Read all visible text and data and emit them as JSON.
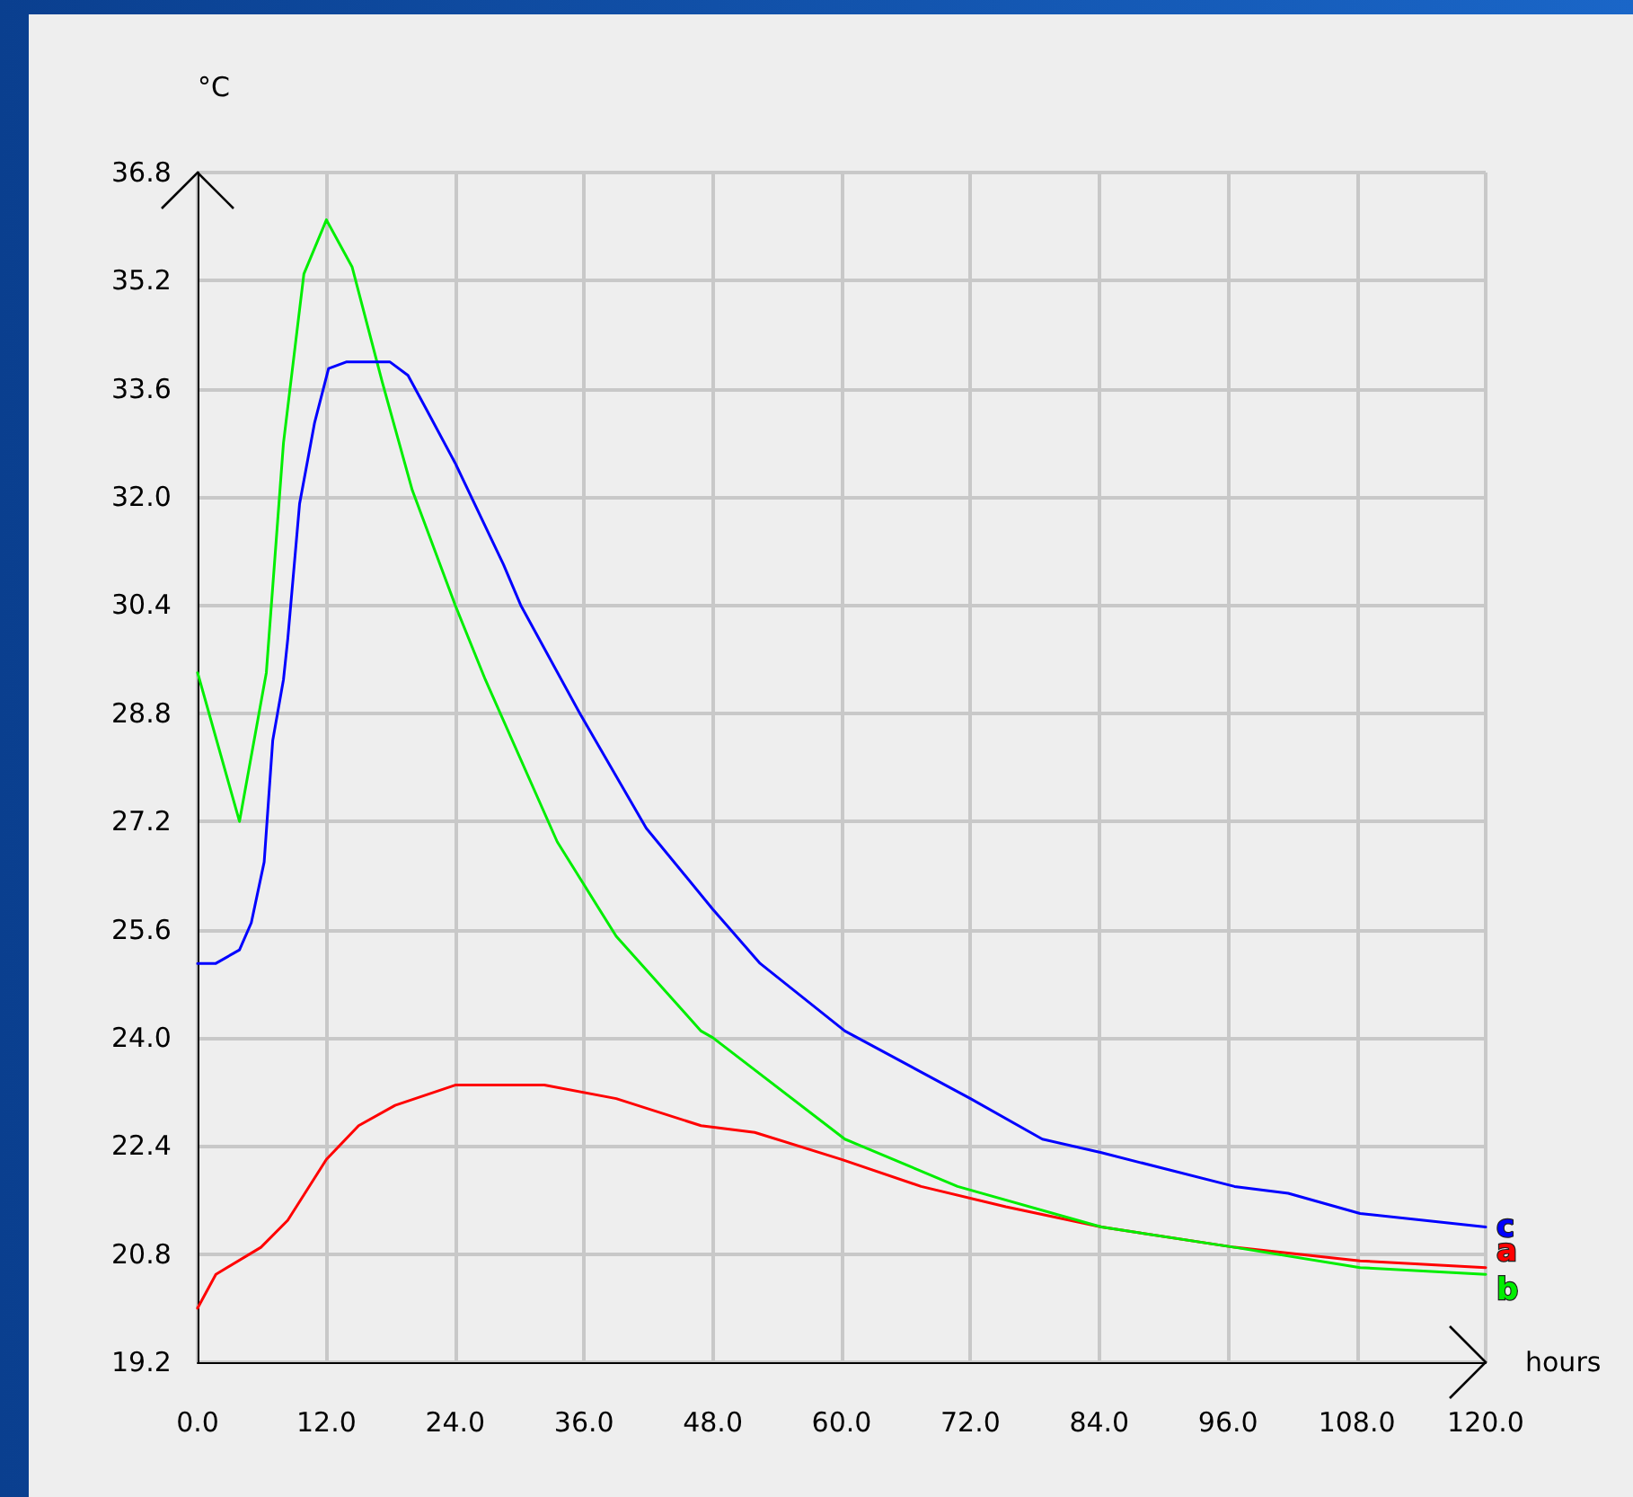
{
  "chart_data": {
    "type": "line",
    "xlabel": "hours",
    "ylabel": "°C",
    "xlim": [
      0,
      120
    ],
    "ylim": [
      19.2,
      36.8
    ],
    "xticks": [
      {
        "value": 0,
        "label": "0.0"
      },
      {
        "value": 12,
        "label": "12.0"
      },
      {
        "value": 24,
        "label": "24.0"
      },
      {
        "value": 36,
        "label": "36.0"
      },
      {
        "value": 48,
        "label": "48.0"
      },
      {
        "value": 60,
        "label": "60.0"
      },
      {
        "value": 72,
        "label": "72.0"
      },
      {
        "value": 84,
        "label": "84.0"
      },
      {
        "value": 96,
        "label": "96.0"
      },
      {
        "value": 108,
        "label": "108.0"
      },
      {
        "value": 120,
        "label": "120.0"
      }
    ],
    "yticks": [
      19.2,
      20.8,
      22.4,
      {
        "value": 24,
        "label": "24.0"
      },
      25.6,
      27.2,
      28.8,
      30.4,
      {
        "value": 32,
        "label": "32.0"
      },
      33.6,
      35.2,
      36.8
    ],
    "grid": true,
    "legend": false,
    "marker": "none",
    "line_style": "solid",
    "series": [
      {
        "name": "a",
        "color": "#ff0000",
        "x": [
          0,
          1.7,
          5.9,
          8.4,
          12,
          15,
          18.4,
          24,
          28.5,
          32.3,
          39,
          46.9,
          51.9,
          60,
          67.4,
          75.3,
          84.2,
          96.6,
          108.3,
          120
        ],
        "values": [
          20,
          20.5,
          20.9,
          21.3,
          22.2,
          22.7,
          23,
          23.3,
          23.3,
          23.3,
          23.1,
          22.7,
          22.6,
          22.2,
          21.8,
          21.5,
          21.2,
          20.9,
          20.7,
          20.6
        ]
      },
      {
        "name": "b",
        "color": "#00ee00",
        "x": [
          0,
          3.9,
          6.4,
          8,
          9.9,
          12,
          14.4,
          17.2,
          20,
          24,
          26.8,
          33.5,
          39,
          46.9,
          48,
          60.3,
          70.8,
          84.2,
          96.6,
          108.3,
          120
        ],
        "values": [
          29.4,
          27.2,
          29.4,
          32.8,
          35.3,
          36.1,
          35.4,
          33.7,
          32.1,
          30.4,
          29.3,
          26.9,
          25.5,
          24.1,
          24,
          22.5,
          21.8,
          21.2,
          20.9,
          20.6,
          20.5
        ]
      },
      {
        "name": "c",
        "color": "#0000ff",
        "x": [
          0,
          1.7,
          3.9,
          5,
          6.2,
          7,
          8,
          8.4,
          9.5,
          10.9,
          12.2,
          13.9,
          17.9,
          19.6,
          21.3,
          24,
          28.5,
          30.1,
          35.6,
          41.8,
          48,
          52.4,
          60.3,
          72,
          78.7,
          84.2,
          96.6,
          101.6,
          108.3,
          120
        ],
        "values": [
          25.1,
          25.1,
          25.3,
          25.7,
          26.6,
          28.4,
          29.3,
          29.9,
          31.9,
          33.1,
          33.9,
          34,
          34,
          33.8,
          33.3,
          32.5,
          31,
          30.4,
          28.8,
          27.1,
          25.9,
          25.1,
          24.1,
          23.1,
          22.5,
          22.3,
          21.8,
          21.7,
          21.4,
          21.2
        ]
      }
    ]
  }
}
